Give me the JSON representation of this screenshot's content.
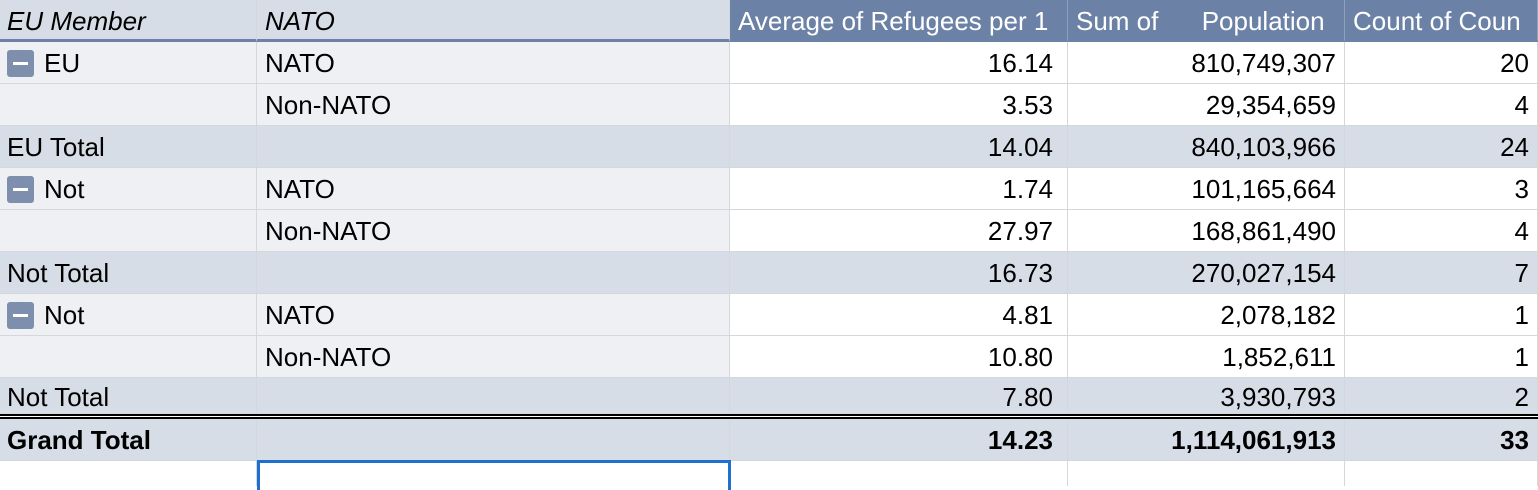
{
  "header": {
    "col0": "EU Member",
    "col1": "NATO",
    "col2": "Average of Refugees per 1",
    "col3": "Sum of      Population",
    "col4": "Count of Coun"
  },
  "rows": [
    {
      "eu": "EU",
      "nato": "NATO",
      "avg": "16.14",
      "pop": "810,749,307",
      "count": "20"
    },
    {
      "eu": "",
      "nato": "Non-NATO",
      "avg": "3.53",
      "pop": "29,354,659",
      "count": "4"
    },
    {
      "eu": "EU Total",
      "nato": "",
      "avg": "14.04",
      "pop": "840,103,966",
      "count": "24"
    },
    {
      "eu": "Not",
      "nato": "NATO",
      "avg": "1.74",
      "pop": "101,165,664",
      "count": "3"
    },
    {
      "eu": "",
      "nato": "Non-NATO",
      "avg": "27.97",
      "pop": "168,861,490",
      "count": "4"
    },
    {
      "eu": "Not Total",
      "nato": "",
      "avg": "16.73",
      "pop": "270,027,154",
      "count": "7"
    },
    {
      "eu": "Not",
      "nato": "NATO",
      "avg": "4.81",
      "pop": "2,078,182",
      "count": "1"
    },
    {
      "eu": "",
      "nato": "Non-NATO",
      "avg": "10.80",
      "pop": "1,852,611",
      "count": "1"
    },
    {
      "eu": "Not  Total",
      "nato": "",
      "avg": "7.80",
      "pop": "3,930,793",
      "count": "2"
    }
  ],
  "grand_total": {
    "label": "Grand Total",
    "avg": "14.23",
    "pop": "1,114,061,913",
    "count": "33"
  },
  "colors": {
    "header_accent": "#6b81a6",
    "subtotal_bg": "#d7dde6",
    "selection": "#1f6fd1"
  },
  "icons": {
    "collapse": "collapse-minus-icon"
  }
}
